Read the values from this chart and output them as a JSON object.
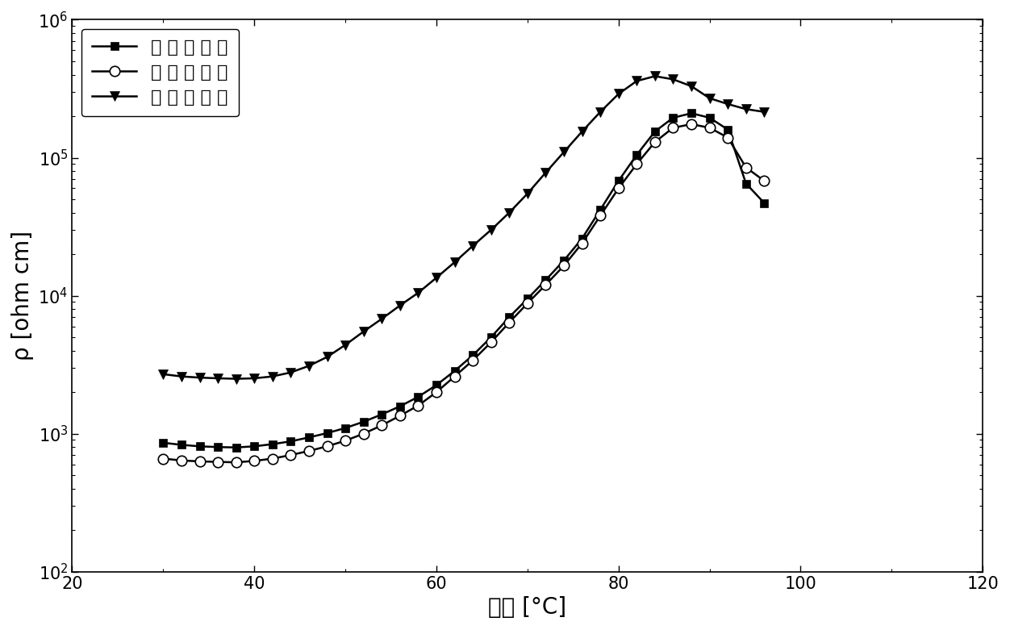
{
  "series1_label": "第 一 次 加 热",
  "series2_label": "第 二 次 加 热",
  "series3_label": "第 五 次 加 热",
  "series1_x": [
    30,
    32,
    34,
    36,
    38,
    40,
    42,
    44,
    46,
    48,
    50,
    52,
    54,
    56,
    58,
    60,
    62,
    64,
    66,
    68,
    70,
    72,
    74,
    76,
    78,
    80,
    82,
    84,
    86,
    88,
    90,
    92,
    94,
    96
  ],
  "series1_y": [
    860,
    830,
    810,
    800,
    795,
    810,
    840,
    880,
    940,
    1010,
    1100,
    1220,
    1380,
    1580,
    1850,
    2250,
    2850,
    3700,
    5000,
    7000,
    9500,
    13000,
    18000,
    26000,
    42000,
    68000,
    105000,
    155000,
    195000,
    210000,
    195000,
    160000,
    65000,
    47000
  ],
  "series2_x": [
    30,
    32,
    34,
    36,
    38,
    40,
    42,
    44,
    46,
    48,
    50,
    52,
    54,
    56,
    58,
    60,
    62,
    64,
    66,
    68,
    70,
    72,
    74,
    76,
    78,
    80,
    82,
    84,
    86,
    88,
    90,
    92,
    94,
    96
  ],
  "series2_y": [
    660,
    640,
    630,
    625,
    620,
    635,
    660,
    700,
    750,
    810,
    890,
    1000,
    1150,
    1350,
    1600,
    2000,
    2600,
    3400,
    4600,
    6400,
    8800,
    12000,
    16500,
    24000,
    38000,
    60000,
    90000,
    130000,
    165000,
    175000,
    165000,
    140000,
    85000,
    68000
  ],
  "series3_x": [
    30,
    32,
    34,
    36,
    38,
    40,
    42,
    44,
    46,
    48,
    50,
    52,
    54,
    56,
    58,
    60,
    62,
    64,
    66,
    68,
    70,
    72,
    74,
    76,
    78,
    80,
    82,
    84,
    86,
    88,
    90,
    92,
    94,
    96
  ],
  "series3_y": [
    2700,
    2600,
    2550,
    2520,
    2500,
    2520,
    2600,
    2780,
    3100,
    3600,
    4400,
    5500,
    6800,
    8500,
    10500,
    13500,
    17500,
    23000,
    30000,
    40000,
    55000,
    78000,
    110000,
    155000,
    215000,
    290000,
    360000,
    390000,
    370000,
    330000,
    270000,
    245000,
    225000,
    215000
  ],
  "xlabel": "温度 [°C]",
  "ylabel": "ρ [ohm cm]",
  "xlim": [
    20,
    120
  ],
  "ylim": [
    100,
    1000000
  ],
  "xticks": [
    20,
    40,
    60,
    80,
    100,
    120
  ],
  "yticks": [
    100,
    1000,
    10000,
    100000,
    1000000
  ],
  "line_color": "#000000",
  "bg_color": "#ffffff",
  "fontsize_label": 20,
  "fontsize_tick": 15,
  "fontsize_legend": 16,
  "marker_size_sq": 7,
  "marker_size_circ": 9,
  "marker_size_tri": 8,
  "linewidth": 1.8
}
